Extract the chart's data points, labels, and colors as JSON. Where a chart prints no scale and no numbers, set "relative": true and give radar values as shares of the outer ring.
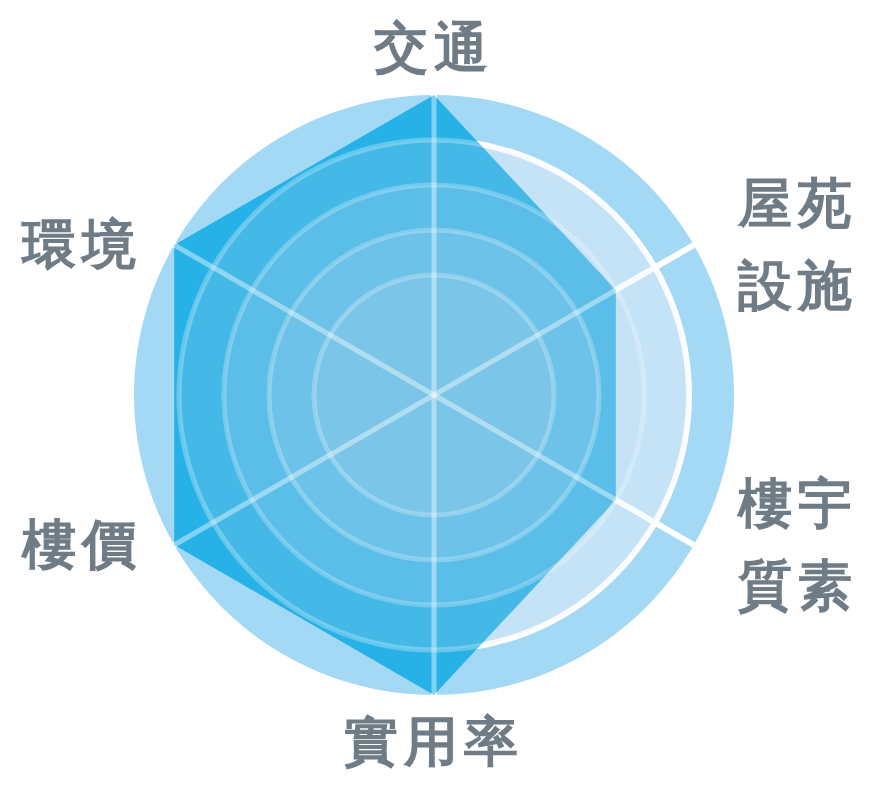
{
  "chart_data": {
    "type": "radar",
    "relative": true,
    "categories": [
      "交通",
      "屋苑設施",
      "樓宇質素",
      "實用率",
      "樓價",
      "環境"
    ],
    "series": [
      {
        "color": "#1aade5",
        "values": [
          1,
          0.7,
          0.7,
          1,
          1,
          1
        ]
      }
    ],
    "grid": true
  }
}
